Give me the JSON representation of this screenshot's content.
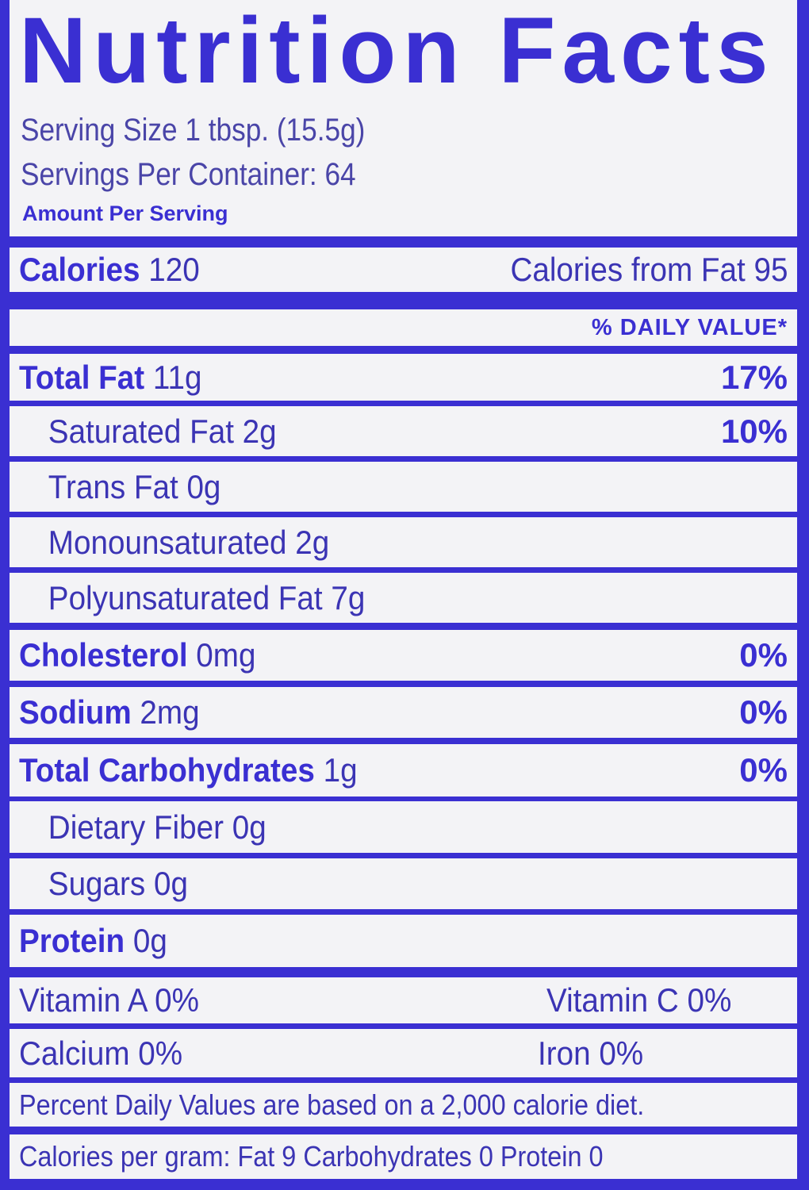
{
  "title": "Nutrition Facts",
  "serving_size": "Serving Size 1 tbsp. (15.5g)",
  "servings_per_container": "Servings Per Container: 64",
  "amount_per_serving": "Amount Per Serving",
  "calories": {
    "label": "Calories",
    "value": "120",
    "from_fat": "Calories from Fat 95"
  },
  "daily_value_header": "% DAILY VALUE*",
  "nutrients": [
    {
      "name": "Total Fat",
      "amount": "11g",
      "dv": "17%"
    },
    {
      "name": "Saturated Fat",
      "amount": "2g",
      "dv": "10%"
    },
    {
      "name": "Trans Fat",
      "amount": "0g",
      "dv": ""
    },
    {
      "name": "Monounsaturated",
      "amount": "2g",
      "dv": ""
    },
    {
      "name": "Polyunsaturated Fat",
      "amount": "7g",
      "dv": ""
    },
    {
      "name": "Cholesterol",
      "amount": "0mg",
      "dv": "0%"
    },
    {
      "name": "Sodium",
      "amount": "2mg",
      "dv": "0%"
    },
    {
      "name": "Total Carbohydrates",
      "amount": "1g",
      "dv": "0%"
    },
    {
      "name": "Dietary Fiber",
      "amount": "0g",
      "dv": ""
    },
    {
      "name": "Sugars",
      "amount": "0g",
      "dv": ""
    },
    {
      "name": "Protein",
      "amount": "0g",
      "dv": ""
    }
  ],
  "vitamins": {
    "vitamin_a": "Vitamin A 0%",
    "vitamin_c": "Vitamin C 0%",
    "calcium": "Calcium 0%",
    "iron": "Iron 0%"
  },
  "footnote": "Percent Daily Values are based on a 2,000 calorie diet.",
  "calories_per_gram": "Calories per gram: Fat 9  Carbohydrates 0  Protein 0",
  "colors": {
    "brand_blue": "#3a2fd2",
    "background": "#f3f3f6"
  }
}
